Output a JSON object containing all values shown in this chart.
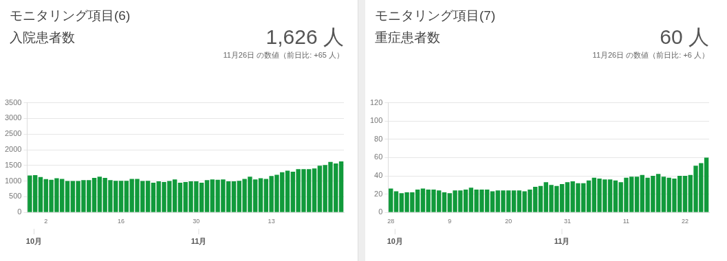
{
  "chart_data": [
    {
      "type": "bar",
      "title": "モニタリング項目(6)",
      "subtitle": "入院患者数",
      "annotations": [
        "1,626 人",
        "11月26日 の数値（前日比: +65 人）",
        "10月",
        "11月"
      ],
      "categories": [
        null,
        null,
        null,
        "2",
        null,
        null,
        null,
        null,
        null,
        null,
        null,
        null,
        null,
        null,
        null,
        null,
        null,
        "16",
        null,
        null,
        null,
        null,
        null,
        null,
        null,
        null,
        null,
        null,
        null,
        null,
        null,
        "30",
        null,
        null,
        null,
        null,
        null,
        null,
        null,
        null,
        null,
        null,
        null,
        null,
        null,
        "13",
        null,
        null,
        null,
        null,
        null,
        null,
        null,
        null,
        null,
        null,
        null,
        null,
        null
      ],
      "values": [
        1180,
        1190,
        1130,
        1060,
        1040,
        1090,
        1070,
        1000,
        1000,
        1000,
        1030,
        1030,
        1100,
        1140,
        1100,
        1030,
        1010,
        1010,
        1010,
        1070,
        1070,
        1000,
        1010,
        950,
        990,
        970,
        1000,
        1050,
        950,
        970,
        990,
        990,
        950,
        1030,
        1050,
        1040,
        1050,
        990,
        990,
        1010,
        1070,
        1140,
        1050,
        1090,
        1070,
        1160,
        1200,
        1280,
        1330,
        1300,
        1380,
        1380,
        1380,
        1400,
        1490,
        1510,
        1610,
        1560,
        1626
      ],
      "color": "#119a3b",
      "ylim": [
        0,
        3500
      ],
      "yticks": [
        0,
        500,
        1000,
        1500,
        2000,
        2500,
        3000,
        3500
      ],
      "grid": "y",
      "legend": false
    },
    {
      "type": "bar",
      "title": "モニタリング項目(7)",
      "subtitle": "重症患者数",
      "annotations": [
        "60 人",
        "11月26日 の数値（前日比: +6 人）",
        "10月",
        "11月"
      ],
      "categories": [
        "28",
        null,
        null,
        null,
        null,
        null,
        null,
        null,
        null,
        null,
        null,
        "9",
        null,
        null,
        null,
        null,
        null,
        null,
        null,
        null,
        null,
        null,
        "20",
        null,
        null,
        null,
        null,
        null,
        null,
        null,
        null,
        null,
        null,
        "31",
        null,
        null,
        null,
        null,
        null,
        null,
        null,
        null,
        null,
        null,
        "11",
        null,
        null,
        null,
        null,
        null,
        null,
        null,
        null,
        null,
        null,
        "22",
        null,
        null,
        null,
        null
      ],
      "values": [
        26,
        23,
        21,
        22,
        22,
        25,
        26,
        25,
        25,
        24,
        22,
        21,
        24,
        24,
        25,
        27,
        25,
        25,
        25,
        23,
        24,
        24,
        24,
        24,
        24,
        23,
        25,
        28,
        29,
        33,
        30,
        29,
        31,
        33,
        34,
        32,
        32,
        35,
        38,
        37,
        36,
        36,
        35,
        33,
        38,
        39,
        39,
        41,
        38,
        40,
        42,
        39,
        38,
        37,
        40,
        40,
        41,
        51,
        54,
        60
      ],
      "color": "#119a3b",
      "ylim": [
        0,
        120
      ],
      "yticks": [
        0,
        20,
        40,
        60,
        80,
        100,
        120
      ],
      "grid": "y",
      "legend": false
    }
  ]
}
